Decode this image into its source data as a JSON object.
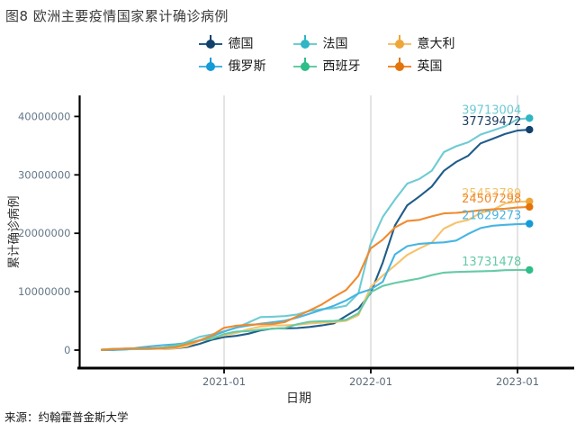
{
  "title": "图8 欧洲主要疫情国家累计确诊病例",
  "source": "来源：约翰霍普金斯大学",
  "axes": {
    "x_title": "日期",
    "y_title": "累计确诊病例",
    "x_tick_labels": [
      "2021-01",
      "2022-01",
      "2023-01"
    ],
    "y_tick_labels": [
      "0",
      "10000000",
      "20000000",
      "30000000",
      "40000000"
    ]
  },
  "colors": {
    "grid": "#c9c9c9",
    "axis_line": "#000000",
    "tick_label": "#64748130",
    "tick_label_fill": "#647481",
    "axis_title_fill": "#2f2f2f"
  },
  "chart_data": {
    "type": "line",
    "title": "图8 欧洲主要疫情国家累计确诊病例",
    "xlabel": "日期",
    "ylabel": "累计确诊病例",
    "x_ticks": [
      "2021-01",
      "2022-01",
      "2023-01"
    ],
    "y_ticks": [
      0,
      10000000,
      20000000,
      30000000,
      40000000
    ],
    "ylim": [
      0,
      43000000
    ],
    "grid": "vertical-only",
    "legend_position": "top-center, 2 rows",
    "x_monthly": [
      "2020-03",
      "2020-04",
      "2020-05",
      "2020-06",
      "2020-07",
      "2020-08",
      "2020-09",
      "2020-10",
      "2020-11",
      "2020-12",
      "2021-01",
      "2021-02",
      "2021-03",
      "2021-04",
      "2021-05",
      "2021-06",
      "2021-07",
      "2021-08",
      "2021-09",
      "2021-10",
      "2021-11",
      "2021-12",
      "2022-01",
      "2022-02",
      "2022-03",
      "2022-04",
      "2022-05",
      "2022-06",
      "2022-07",
      "2022-08",
      "2022-09",
      "2022-10",
      "2022-11",
      "2022-12",
      "2023-01",
      "2023-02"
    ],
    "series": [
      {
        "name": "德国",
        "color": "#1f5c8a",
        "point_color": "#12416b",
        "label_color": "#1b3a5e",
        "end_label": "37739472",
        "end_value": 37739472,
        "values_millions": [
          0.07,
          0.16,
          0.18,
          0.19,
          0.21,
          0.24,
          0.29,
          0.52,
          1.06,
          1.76,
          2.22,
          2.44,
          2.81,
          3.38,
          3.68,
          3.73,
          3.77,
          3.96,
          4.22,
          4.56,
          5.85,
          7.11,
          9.74,
          14.99,
          21.36,
          24.79,
          26.31,
          28.0,
          30.7,
          32.2,
          33.3,
          35.4,
          36.2,
          37.0,
          37.58,
          37.74
        ]
      },
      {
        "name": "法国",
        "color": "#6fcbd3",
        "point_color": "#2fb5c4",
        "label_color": "#6fcbd3",
        "end_label": "39713004",
        "end_value": 39713004,
        "values_millions": [
          0.05,
          0.13,
          0.14,
          0.16,
          0.19,
          0.28,
          0.57,
          1.41,
          2.27,
          2.68,
          3.22,
          3.82,
          4.71,
          5.65,
          5.72,
          5.83,
          6.1,
          6.7,
          7.0,
          7.2,
          7.6,
          9.7,
          18.2,
          22.8,
          25.8,
          28.5,
          29.3,
          30.7,
          33.9,
          34.9,
          35.6,
          36.9,
          37.6,
          38.3,
          39.5,
          39.71
        ]
      },
      {
        "name": "意大利",
        "color": "#f6c36c",
        "point_color": "#efa638",
        "label_color": "#f6c36c",
        "end_label": "25453789",
        "end_value": 25453789,
        "values_millions": [
          0.11,
          0.21,
          0.23,
          0.24,
          0.25,
          0.27,
          0.31,
          0.68,
          1.6,
          2.11,
          2.55,
          2.93,
          3.58,
          4.02,
          4.22,
          4.26,
          4.35,
          4.55,
          4.68,
          4.77,
          5.03,
          5.98,
          10.8,
          12.76,
          14.5,
          16.3,
          17.4,
          18.4,
          20.8,
          21.8,
          22.3,
          23.5,
          24.0,
          25.1,
          25.4,
          25.45
        ]
      },
      {
        "name": "俄罗斯",
        "color": "#47b4e3",
        "point_color": "#149bd8",
        "label_color": "#47b4e3",
        "end_label": "21629273",
        "end_value": 21629273,
        "values_millions": [
          0.0,
          0.01,
          0.11,
          0.41,
          0.65,
          0.84,
          1.0,
          1.23,
          1.66,
          2.35,
          3.16,
          3.85,
          4.2,
          4.52,
          4.78,
          5.04,
          5.56,
          6.22,
          6.9,
          7.6,
          8.5,
          9.7,
          10.4,
          11.7,
          16.4,
          17.8,
          18.2,
          18.35,
          18.45,
          18.75,
          19.9,
          20.9,
          21.3,
          21.45,
          21.55,
          21.63
        ]
      },
      {
        "name": "西班牙",
        "color": "#66caa5",
        "point_color": "#2fbd8a",
        "label_color": "#66caa5",
        "end_label": "13731478",
        "end_value": 13731478,
        "values_millions": [
          0.09,
          0.21,
          0.24,
          0.25,
          0.28,
          0.44,
          0.77,
          1.19,
          1.65,
          1.93,
          2.74,
          3.18,
          3.25,
          3.51,
          3.67,
          3.79,
          4.42,
          4.85,
          4.94,
          5.0,
          5.19,
          6.29,
          9.9,
          10.98,
          11.5,
          11.9,
          12.27,
          12.83,
          13.27,
          13.37,
          13.44,
          13.49,
          13.55,
          13.68,
          13.72,
          13.73
        ]
      },
      {
        "name": "英国",
        "color": "#f18a2e",
        "point_color": "#e2740a",
        "label_color": "#f18a2e",
        "end_label": "24507298",
        "end_value": 24507298,
        "values_millions": [
          0.03,
          0.17,
          0.27,
          0.31,
          0.3,
          0.33,
          0.46,
          1.01,
          1.63,
          2.49,
          3.8,
          4.18,
          4.35,
          4.42,
          4.49,
          4.8,
          5.8,
          6.8,
          7.8,
          9.1,
          10.3,
          12.7,
          17.4,
          18.9,
          21.0,
          22.1,
          22.3,
          22.9,
          23.4,
          23.5,
          23.7,
          23.95,
          24.1,
          24.2,
          24.4,
          24.51
        ]
      }
    ]
  }
}
